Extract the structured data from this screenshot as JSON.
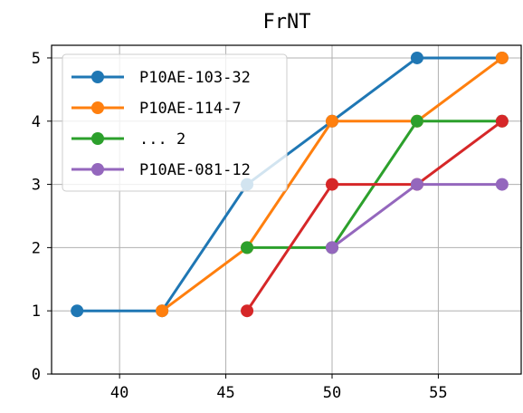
{
  "chart_data": {
    "type": "line",
    "title": "FrNT",
    "xlabel": "",
    "ylabel": "",
    "xlim": [
      36.8,
      58.9
    ],
    "ylim": [
      0,
      5.2
    ],
    "xticks": [
      40,
      45,
      50,
      55
    ],
    "yticks": [
      0,
      1,
      2,
      3,
      4,
      5
    ],
    "grid": true,
    "legend": {
      "position": "top-left",
      "entries": [
        "P10AE-103-32",
        "P10AE-114-7",
        "... 2",
        "P10AE-081-12"
      ]
    },
    "series": [
      {
        "name": "P10AE-103-32",
        "color": "#1f77b4",
        "x": [
          38,
          42,
          46,
          50,
          54,
          58
        ],
        "y": [
          1,
          1,
          3,
          4,
          5,
          5
        ]
      },
      {
        "name": "P10AE-114-7",
        "color": "#ff7f0e",
        "x": [
          42,
          46,
          50,
          54,
          58
        ],
        "y": [
          1,
          2,
          4,
          4,
          5
        ]
      },
      {
        "color": "#2ca02c",
        "x": [
          46,
          50,
          54,
          58
        ],
        "y": [
          2,
          2,
          4,
          4
        ]
      },
      {
        "color": "#d62728",
        "x": [
          46,
          50,
          54,
          58
        ],
        "y": [
          1,
          3,
          3,
          4
        ]
      },
      {
        "name": "P10AE-081-12",
        "color": "#9467bd",
        "x": [
          50,
          54,
          58
        ],
        "y": [
          2,
          3,
          3
        ]
      }
    ]
  }
}
